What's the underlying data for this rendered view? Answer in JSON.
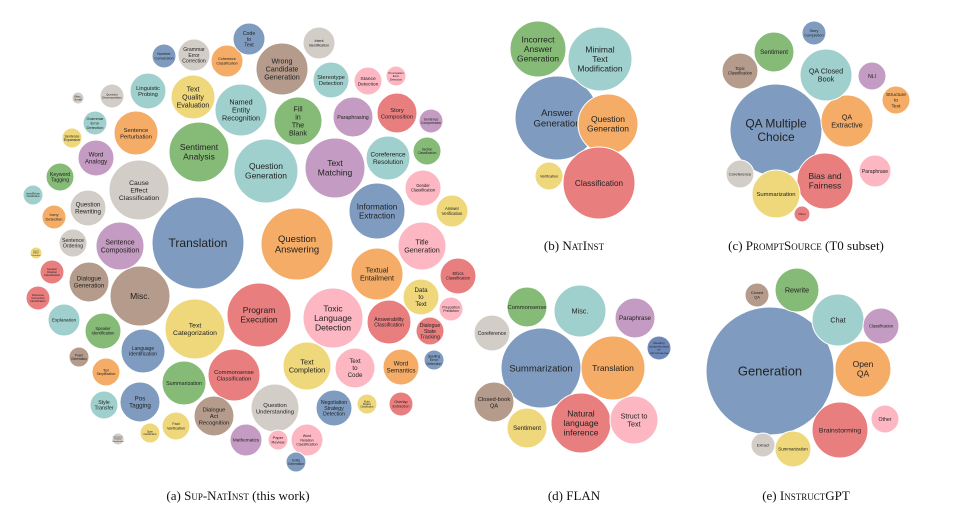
{
  "colors": {
    "blue": "#7F9CC0",
    "orange": "#F4AC66",
    "red": "#E97E7F",
    "teal": "#9FD0CD",
    "green": "#86BB77",
    "yellow": "#EFD77B",
    "purple": "#C49BC2",
    "pink": "#FDB7C3",
    "brown": "#B49B8B",
    "gray": "#D3CDC8",
    "navy": "#6E87B9"
  },
  "panels": [
    {
      "id": "a",
      "caption": {
        "prefix": "(a) ",
        "name": "Sup-NatInst",
        "suffix": " (this work)"
      },
      "bubbles": [
        {
          "label": "Translation",
          "color": "blue"
        },
        {
          "label": "Question Answering",
          "color": "orange"
        },
        {
          "label": "Program Execution",
          "color": "red"
        },
        {
          "label": "Question Generation",
          "color": "teal"
        },
        {
          "label": "Sentiment Analysis",
          "color": "green"
        },
        {
          "label": "Text Categorization",
          "color": "yellow"
        },
        {
          "label": "Text Matching",
          "color": "purple"
        },
        {
          "label": "Toxic Language Detection",
          "color": "pink"
        },
        {
          "label": "Cause Effect Classification",
          "color": "gray"
        },
        {
          "label": "Misc.",
          "color": "brown"
        },
        {
          "label": "Information Extraction",
          "color": "blue"
        },
        {
          "label": "Textual Entailment",
          "color": "orange"
        },
        {
          "label": "Wrong Candidate Generation",
          "color": "brown"
        },
        {
          "label": "Named Entity Recognition",
          "color": "teal"
        },
        {
          "label": "Commonsense Classification",
          "color": "red"
        },
        {
          "label": "Title Generation",
          "color": "pink"
        },
        {
          "label": "Sentence Composition",
          "color": "purple"
        },
        {
          "label": "Text Completion",
          "color": "yellow"
        },
        {
          "label": "Question Understanding",
          "color": "gray"
        },
        {
          "label": "Fill in The Blank",
          "color": "green"
        },
        {
          "label": "Coreference Resolution",
          "color": "teal"
        },
        {
          "label": "Answerability Classification",
          "color": "red"
        },
        {
          "label": "Text Quality Evaluation",
          "color": "yellow"
        },
        {
          "label": "Summarization",
          "color": "green"
        },
        {
          "label": "Language Identification",
          "color": "blue"
        },
        {
          "label": "Dialogue Generation",
          "color": "brown"
        },
        {
          "label": "Text to Code",
          "color": "pink"
        },
        {
          "label": "Paraphrasing",
          "color": "purple"
        },
        {
          "label": "Sentence Perturbation",
          "color": "orange"
        },
        {
          "label": "Linguistic Probing",
          "color": "teal"
        },
        {
          "label": "Pos Tagging",
          "color": "blue"
        },
        {
          "label": "Dialogue Act Recognition",
          "color": "brown"
        },
        {
          "label": "Word Semantics",
          "color": "orange"
        },
        {
          "label": "Story Composition",
          "color": "red"
        },
        {
          "label": "Stereotype Detection",
          "color": "teal"
        },
        {
          "label": "Negotiation Strategy Detection",
          "color": "blue"
        },
        {
          "label": "Word Analogy",
          "color": "purple"
        },
        {
          "label": "Question Rewriting",
          "color": "gray"
        },
        {
          "label": "Data to Text",
          "color": "yellow"
        },
        {
          "label": "Speaker Identification",
          "color": "green"
        },
        {
          "label": "Ethics Classification",
          "color": "red"
        },
        {
          "label": "Gender Classification",
          "color": "pink"
        },
        {
          "label": "Mathematics",
          "color": "purple"
        },
        {
          "label": "Word Relation Classification",
          "color": "pink"
        },
        {
          "label": "Coherence Classification",
          "color": "orange"
        },
        {
          "label": "Intent Identification",
          "color": "gray"
        },
        {
          "label": "Code to Text",
          "color": "blue"
        },
        {
          "label": "Grammar Error Correction",
          "color": "gray"
        },
        {
          "label": "Number Conversion",
          "color": "blue"
        },
        {
          "label": "Question Decomposition",
          "color": "gray"
        },
        {
          "label": "Keyword Tagging",
          "color": "green"
        },
        {
          "label": "Grammar Error Detection",
          "color": "teal"
        },
        {
          "label": "Sentence Ordering",
          "color": "gray"
        },
        {
          "label": "Explanation",
          "color": "teal"
        },
        {
          "label": "Answer Verification",
          "color": "yellow"
        },
        {
          "label": "Dialogue State Tracking",
          "color": "red"
        },
        {
          "label": "Section Classification",
          "color": "green"
        },
        {
          "label": "Stance Detection",
          "color": "pink"
        },
        {
          "label": "Text Simplification",
          "color": "orange"
        },
        {
          "label": "Fact Verification",
          "color": "yellow"
        },
        {
          "label": "Style Transfer",
          "color": "teal"
        },
        {
          "label": "Irony Detection",
          "color": "orange"
        },
        {
          "label": "Speaker Relation Classification",
          "color": "red"
        },
        {
          "label": "Discourse Connective Identification",
          "color": "red"
        },
        {
          "label": "Overlap Extraction",
          "color": "red"
        },
        {
          "label": "Preposition Prediction",
          "color": "pink"
        },
        {
          "label": "Sentence Compression",
          "color": "purple"
        },
        {
          "label": "Sentence Expansion",
          "color": "yellow"
        },
        {
          "label": "Intent/Refuse Classification",
          "color": "teal"
        },
        {
          "label": "Spam Classification",
          "color": "yellow"
        },
        {
          "label": "Entity Relation Classification",
          "color": "yellow"
        },
        {
          "label": "Punctuation Error Detection",
          "color": "pink"
        },
        {
          "label": "Spelling Error Detection",
          "color": "blue"
        },
        {
          "label": "Paper Review",
          "color": "pink"
        },
        {
          "label": "Entity Generation",
          "color": "blue"
        },
        {
          "label": "Poem Generation",
          "color": "brown"
        },
        {
          "label": "Discourse Relation Classification",
          "color": "gray"
        },
        {
          "label": "Misc. Small",
          "color": "gray"
        },
        {
          "label": "Cause Effect Detection",
          "color": "yellow"
        },
        {
          "label": "Fill Blank",
          "color": "green"
        }
      ]
    },
    {
      "id": "b",
      "caption": {
        "prefix": "(b) ",
        "name": "NatInst",
        "suffix": ""
      },
      "bubbles": [
        {
          "label": "Answer Generation",
          "color": "blue"
        },
        {
          "label": "Question Generation",
          "color": "orange"
        },
        {
          "label": "Classification",
          "color": "red"
        },
        {
          "label": "Minimal Text Modification",
          "color": "teal"
        },
        {
          "label": "Incorrect Answer Generation",
          "color": "green"
        },
        {
          "label": "Verification",
          "color": "yellow"
        }
      ]
    },
    {
      "id": "c",
      "caption": {
        "prefix": "(c) ",
        "name": "PromptSource",
        "suffix": " (T0 subset)"
      },
      "bubbles": [
        {
          "label": "QA Multiple Choice",
          "color": "blue"
        },
        {
          "label": "QA Extractive",
          "color": "orange"
        },
        {
          "label": "Bias and Fairness",
          "color": "red"
        },
        {
          "label": "QA Closed Book",
          "color": "teal"
        },
        {
          "label": "Summarization",
          "color": "yellow"
        },
        {
          "label": "Sentiment",
          "color": "green"
        },
        {
          "label": "Topic Classification",
          "color": "brown"
        },
        {
          "label": "NLI",
          "color": "purple"
        },
        {
          "label": "Paraphrase",
          "color": "pink"
        },
        {
          "label": "Structure to Text",
          "color": "orange"
        },
        {
          "label": "Coreference",
          "color": "gray"
        },
        {
          "label": "Story Completion",
          "color": "blue"
        },
        {
          "label": "Other",
          "color": "red"
        }
      ]
    },
    {
      "id": "d",
      "caption": {
        "prefix": "(d) ",
        "name": "FLAN",
        "suffix": ""
      },
      "bubbles": [
        {
          "label": "Summarization",
          "color": "blue"
        },
        {
          "label": "Translation",
          "color": "orange"
        },
        {
          "label": "Natural language inference",
          "color": "red"
        },
        {
          "label": "Misc.",
          "color": "teal"
        },
        {
          "label": "Struct to Text",
          "color": "pink"
        },
        {
          "label": "Sentiment",
          "color": "yellow"
        },
        {
          "label": "Closed-book QA",
          "color": "brown"
        },
        {
          "label": "Commonsense",
          "color": "green"
        },
        {
          "label": "Paraphrase",
          "color": "purple"
        },
        {
          "label": "Coreference",
          "color": "gray"
        },
        {
          "label": "Reading comprehension w/ commonsense",
          "color": "navy"
        }
      ]
    },
    {
      "id": "e",
      "caption": {
        "prefix": "(e) ",
        "name": "InstructGPT",
        "suffix": ""
      },
      "bubbles": [
        {
          "label": "Generation",
          "color": "blue"
        },
        {
          "label": "Open QA",
          "color": "orange"
        },
        {
          "label": "Brainstorming",
          "color": "red"
        },
        {
          "label": "Chat",
          "color": "teal"
        },
        {
          "label": "Rewrite",
          "color": "green"
        },
        {
          "label": "Summarization",
          "color": "yellow"
        },
        {
          "label": "Classification",
          "color": "purple"
        },
        {
          "label": "Other",
          "color": "pink"
        },
        {
          "label": "Extract",
          "color": "gray"
        },
        {
          "label": "Closed QA",
          "color": "brown"
        }
      ]
    }
  ]
}
